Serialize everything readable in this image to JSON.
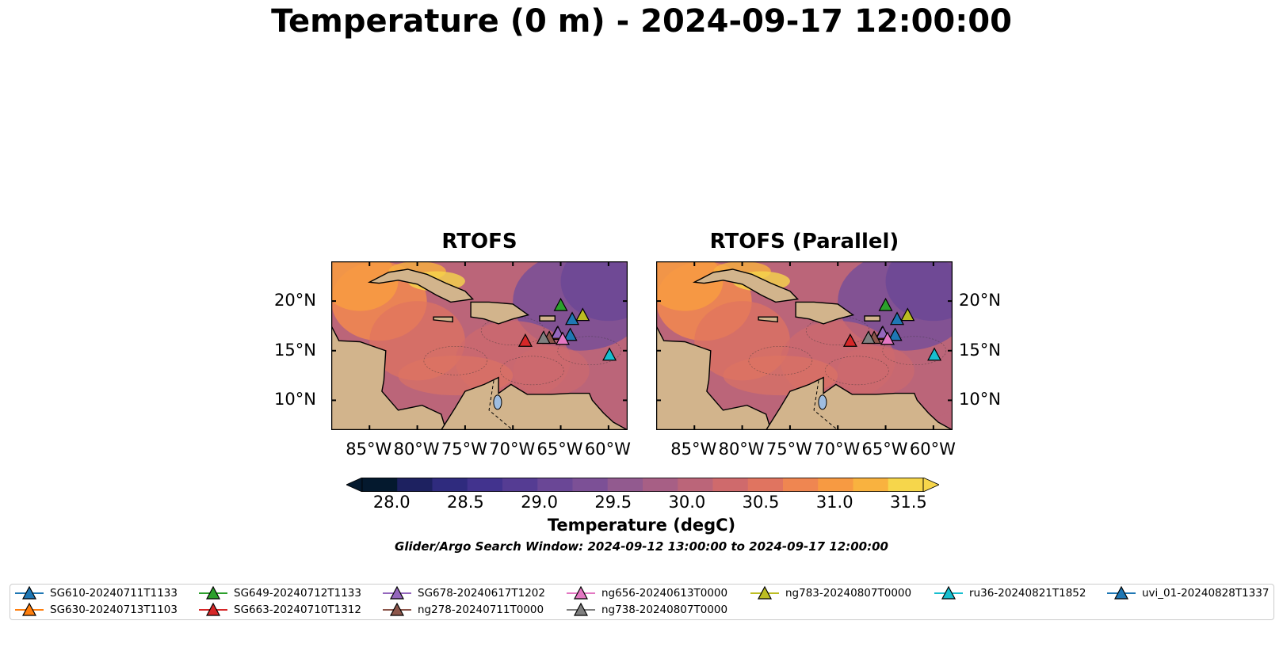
{
  "title": "Temperature (0 m) - 2024-09-17 12:00:00",
  "panels": [
    {
      "title": "RTOFS"
    },
    {
      "title": "RTOFS (Parallel)"
    }
  ],
  "map": {
    "lon_range": [
      -89,
      -58
    ],
    "lat_range": [
      7,
      24
    ],
    "lon_ticks": [
      -85,
      -80,
      -75,
      -70,
      -65,
      -60
    ],
    "lon_tick_labels": [
      "85°W",
      "80°W",
      "75°W",
      "70°W",
      "65°W",
      "60°W"
    ],
    "lat_ticks": [
      10,
      15,
      20
    ],
    "lat_tick_labels": [
      "10°N",
      "15°N",
      "20°N"
    ]
  },
  "colorbar": {
    "title": "Temperature (degC)",
    "min": 27.8,
    "max": 31.6,
    "tick_labels": [
      "28.0",
      "28.5",
      "29.0",
      "29.5",
      "30.0",
      "30.5",
      "31.0",
      "31.5"
    ],
    "ticks": [
      28.0,
      28.5,
      29.0,
      29.5,
      30.0,
      30.5,
      31.0,
      31.5
    ],
    "colors": [
      "#04192e",
      "#1d2160",
      "#2f2b7e",
      "#42338e",
      "#553c93",
      "#6a4796",
      "#7c5096",
      "#925a8f",
      "#a75f85",
      "#bb6579",
      "#cf6a6c",
      "#e07460",
      "#ef8651",
      "#f79a42",
      "#f9b23f",
      "#f6d64b"
    ]
  },
  "search_window": "Glider/Argo Search Window: 2024-09-12 13:00:00 to 2024-09-17 12:00:00",
  "gliders": [
    {
      "name": "SG610-20240711T1133",
      "color": "#1f77b4",
      "lon": -64.0,
      "lat": 16.6
    },
    {
      "name": "SG630-20240713T1103",
      "color": "#ff7f0e",
      "lon": -65.4,
      "lat": 16.7
    },
    {
      "name": "SG649-20240712T1133",
      "color": "#2ca02c",
      "lon": -65.0,
      "lat": 19.6
    },
    {
      "name": "SG663-20240710T1312",
      "color": "#d62728",
      "lon": -68.7,
      "lat": 16.0
    },
    {
      "name": "SG678-20240617T1202",
      "color": "#9467bd",
      "lon": -65.3,
      "lat": 16.8
    },
    {
      "name": "ng278-20240711T0000",
      "color": "#8c564b",
      "lon": -66.2,
      "lat": 16.3
    },
    {
      "name": "ng656-20240613T0000",
      "color": "#e377c2",
      "lon": -64.8,
      "lat": 16.2
    },
    {
      "name": "ng738-20240807T0000",
      "color": "#7f7f7f",
      "lon": -66.8,
      "lat": 16.3
    },
    {
      "name": "ng783-20240807T0000",
      "color": "#bcbd22",
      "lon": -62.7,
      "lat": 18.6
    },
    {
      "name": "ru36-20240821T1852",
      "color": "#17becf",
      "lon": -59.9,
      "lat": 14.6
    },
    {
      "name": "uvi_01-20240828T1337",
      "color": "#1f77b4",
      "lon": -63.8,
      "lat": 18.2
    }
  ]
}
